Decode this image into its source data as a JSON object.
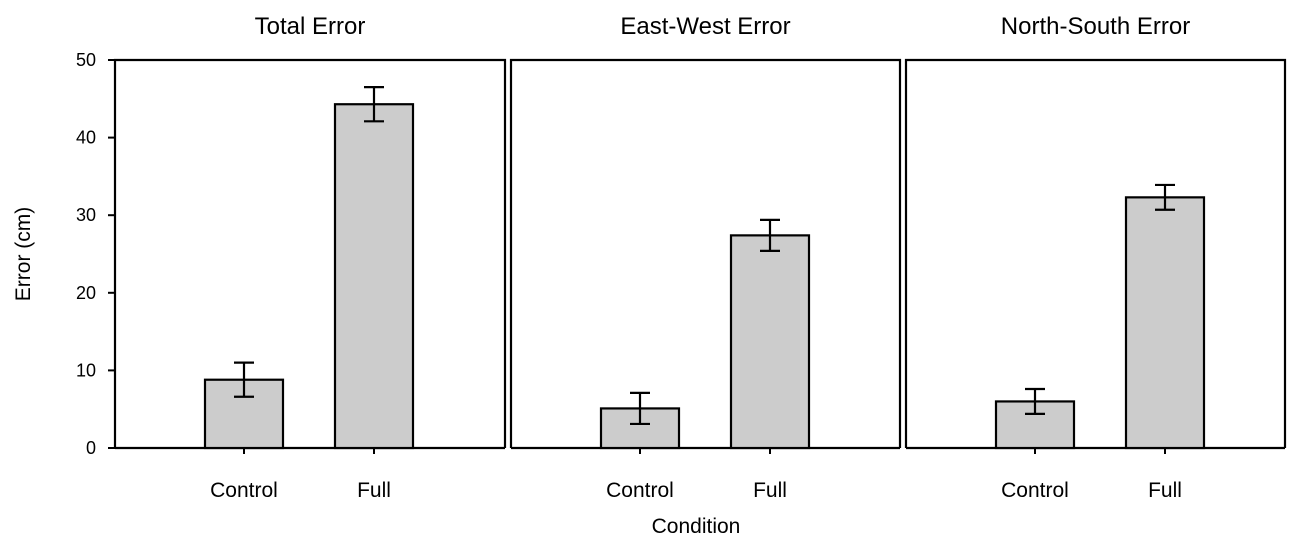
{
  "chart_data": {
    "type": "bar",
    "xlabel": "Condition",
    "ylabel": "Error (cm)",
    "ylim": [
      0,
      50
    ],
    "yticks": [
      0,
      10,
      20,
      30,
      40,
      50
    ],
    "categories": [
      "Control",
      "Full"
    ],
    "bar_color": "#cccccc",
    "grid": false,
    "panels": [
      {
        "title": "Total Error",
        "values": [
          8.8,
          44.3
        ],
        "error": [
          2.2,
          2.2
        ]
      },
      {
        "title": "East-West Error",
        "values": [
          5.1,
          27.4
        ],
        "error": [
          2.0,
          2.0
        ]
      },
      {
        "title": "North-South Error",
        "values": [
          6.0,
          32.3
        ],
        "error": [
          1.6,
          1.6
        ]
      }
    ]
  }
}
